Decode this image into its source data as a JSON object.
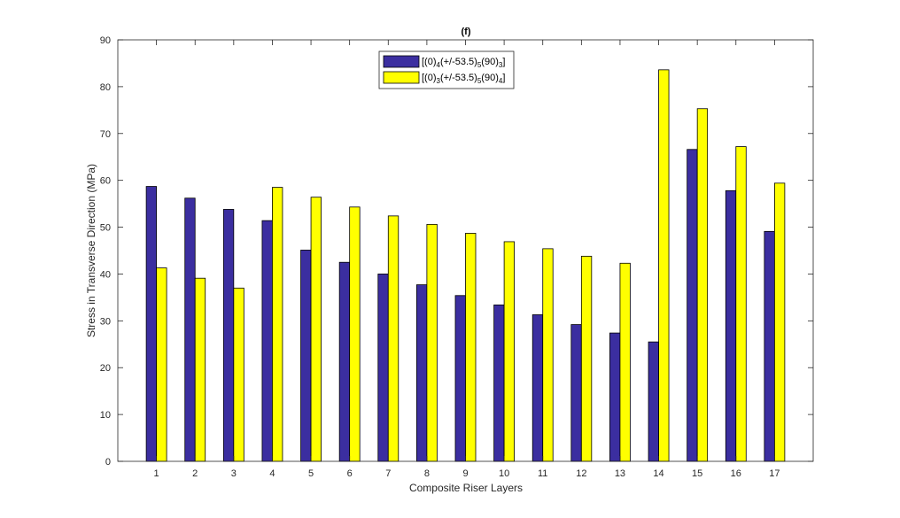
{
  "chart_data": {
    "type": "bar",
    "title": "(f)",
    "xlabel": "Composite Riser Layers",
    "ylabel": "Stress in Transverse Direction (MPa)",
    "ylim": [
      0,
      90
    ],
    "yticks": [
      "0",
      "10",
      "20",
      "30",
      "40",
      "50",
      "60",
      "70",
      "80",
      "90"
    ],
    "categories": [
      "1",
      "2",
      "3",
      "4",
      "5",
      "6",
      "7",
      "8",
      "9",
      "10",
      "11",
      "12",
      "13",
      "14",
      "15",
      "16",
      "17"
    ],
    "grid": false,
    "legend_position": "top-center",
    "series": [
      {
        "name": "[(0)4(+/-53.5)5(90)3]",
        "legend": {
          "parts": [
            "[(0)",
            "4",
            "(+/-53.5)",
            "5",
            "(90)",
            "3",
            "]"
          ]
        },
        "color": "#3b2ea0",
        "values": [
          58.7,
          56.2,
          53.8,
          51.4,
          45.1,
          42.5,
          40.0,
          37.7,
          35.4,
          33.4,
          31.3,
          29.2,
          27.4,
          25.5,
          66.6,
          57.8,
          49.1
        ]
      },
      {
        "name": "[(0)3(+/-53.5)5(90)4]",
        "legend": {
          "parts": [
            "[(0)",
            "3",
            "(+/-53.5)",
            "5",
            "(90)",
            "4",
            "]"
          ]
        },
        "color": "#ffff00",
        "values": [
          41.3,
          39.1,
          37.0,
          58.5,
          56.4,
          54.3,
          52.4,
          50.6,
          48.7,
          46.9,
          45.4,
          43.8,
          42.3,
          83.6,
          75.3,
          67.2,
          59.4
        ]
      }
    ]
  }
}
